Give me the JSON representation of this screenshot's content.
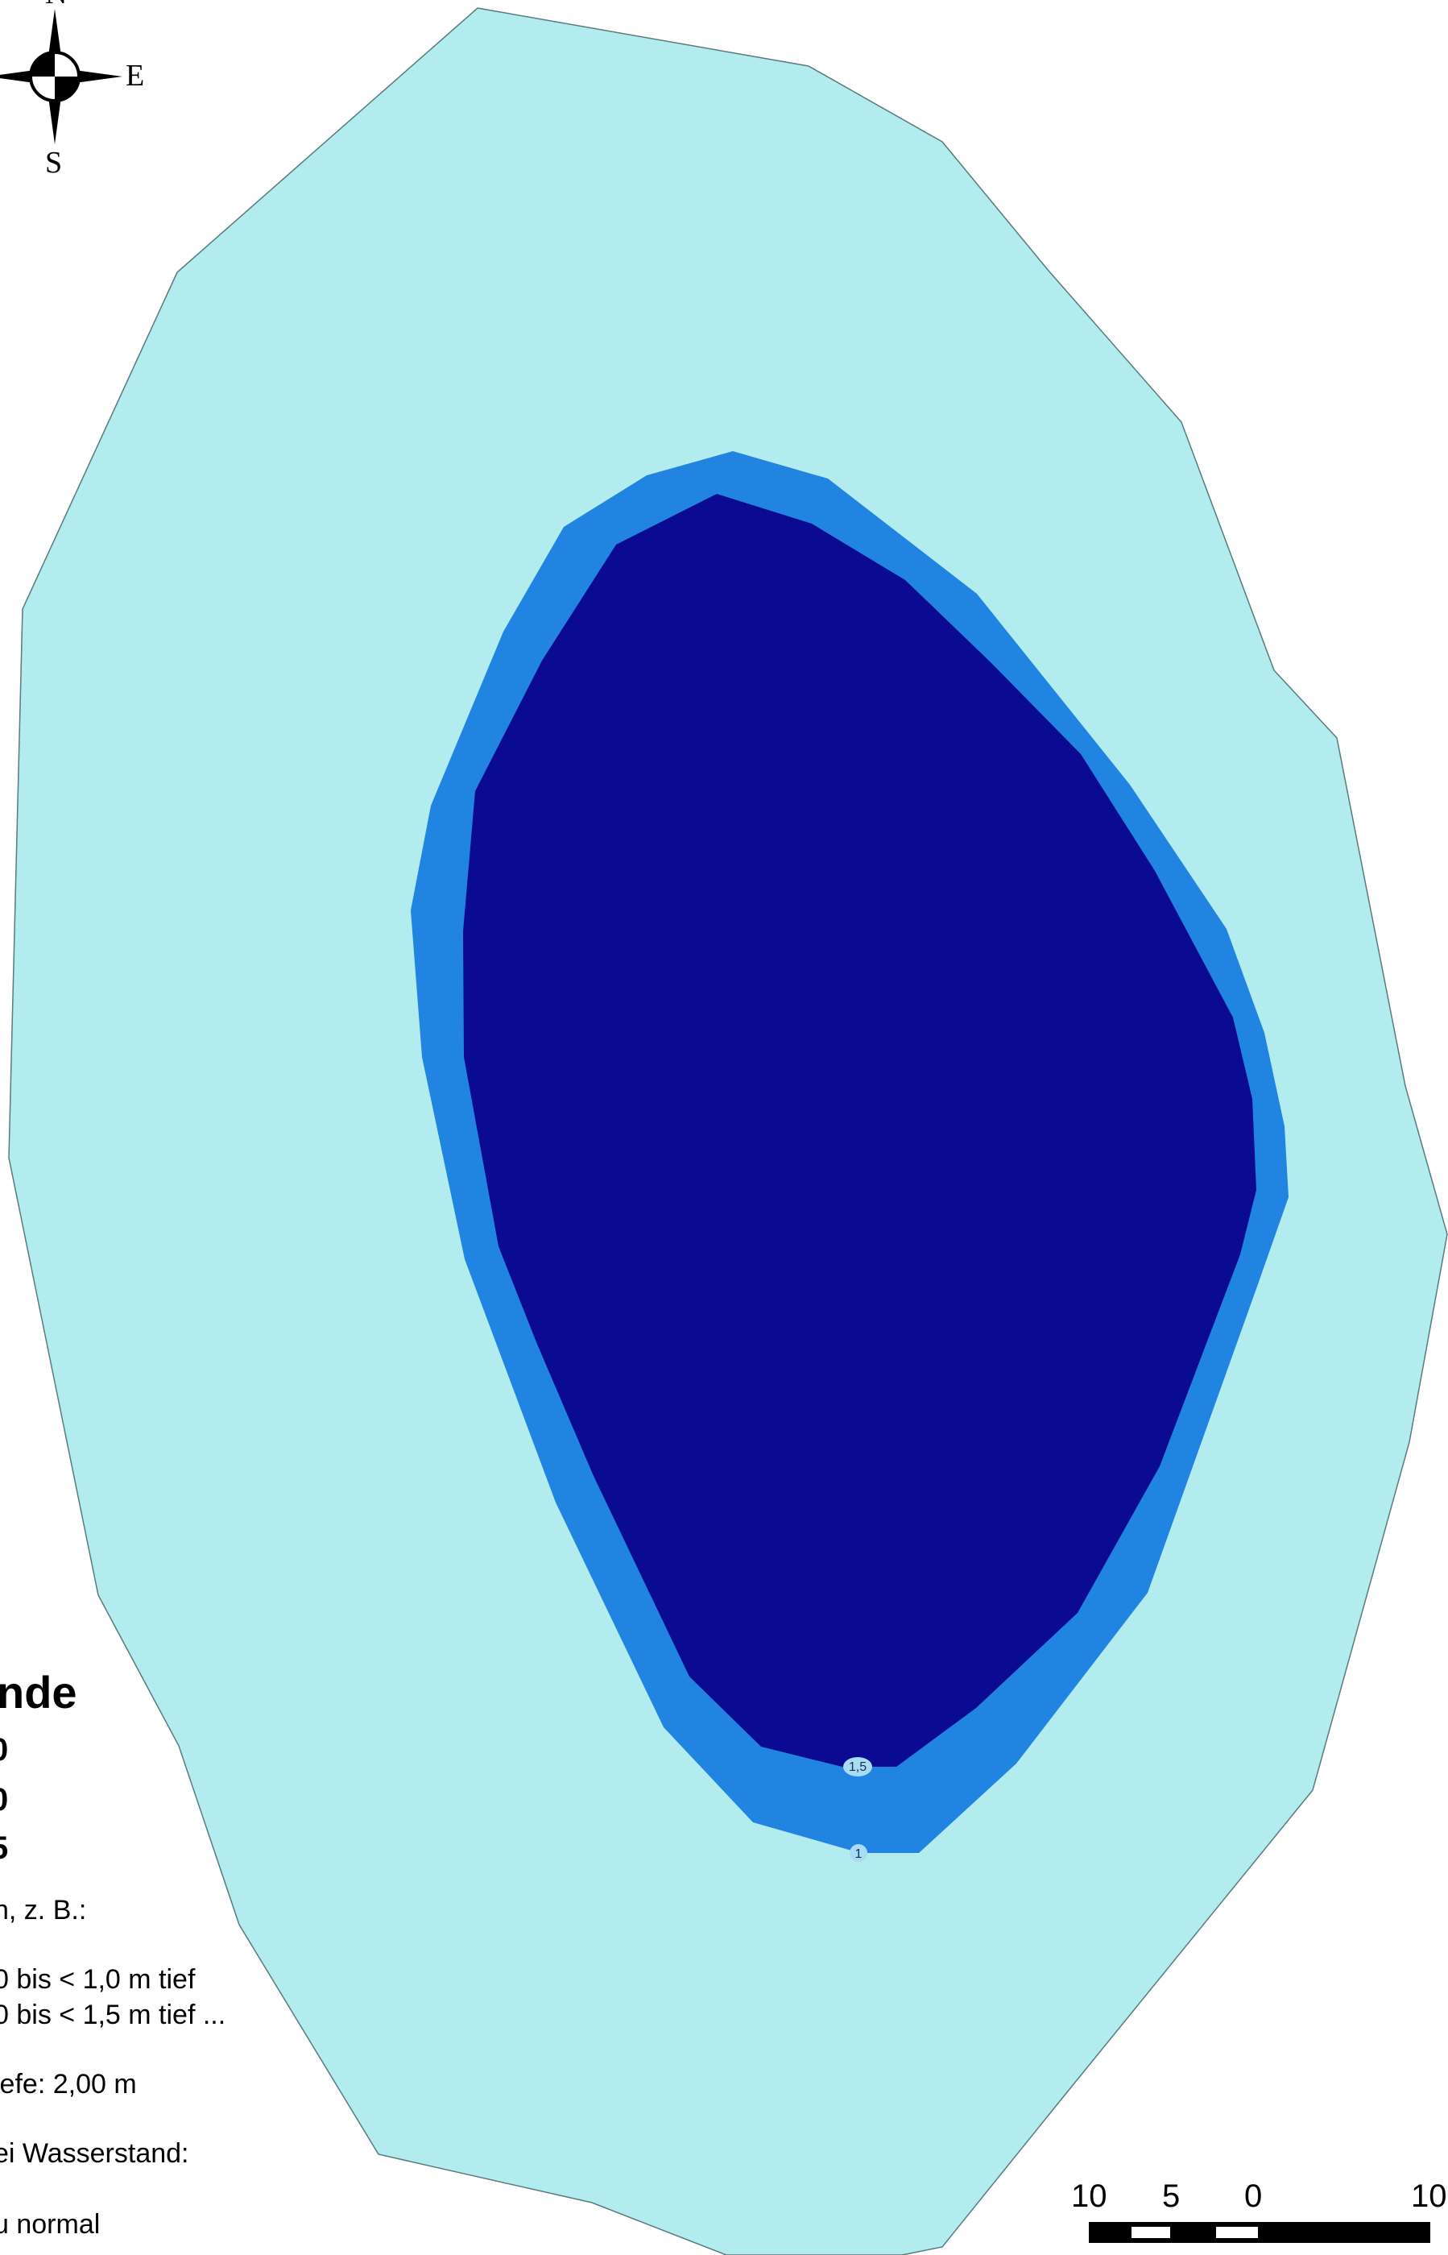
{
  "map": {
    "colors": {
      "zone_lt_1": "#b3ecef",
      "zone_1_to_1_5": "#2184e0",
      "zone_ge_1_5": "#0a0a92",
      "outline": "#5a7a7c",
      "label_halo": "#a8dcf4"
    },
    "contour_labels": [
      "1,5",
      "1"
    ],
    "top_title_partial": "",
    "compass": {
      "north": "N",
      "east": "E",
      "south": "S",
      "icon": "compass-rose-icon"
    }
  },
  "legend": {
    "title": "nde",
    "classes": [
      "0",
      "0",
      "5"
    ],
    "lines": [
      "n, z. B.:",
      "0 bis < 1,0 m tief",
      "0 bis < 1,5 m tief ...",
      "iefe: 2,00 m",
      "ei Wasserstand:",
      "u normal"
    ]
  },
  "scale_bar": {
    "labels": [
      "10",
      "5",
      "0",
      "10"
    ]
  }
}
